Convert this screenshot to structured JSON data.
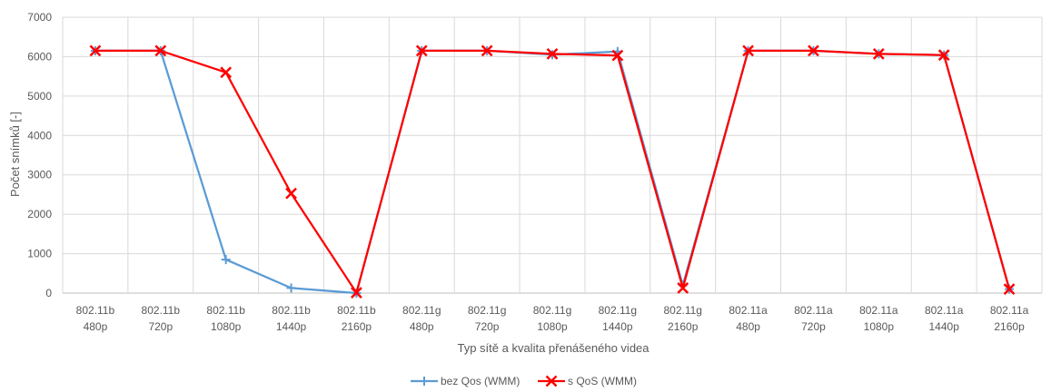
{
  "chart_data": {
    "type": "line",
    "xlabel": "Typ sítě a kvalita přenášeného videa",
    "ylabel": "Počet snímků [-]",
    "ylim": [
      0,
      7000
    ],
    "yticks": [
      0,
      1000,
      2000,
      3000,
      4000,
      5000,
      6000,
      7000
    ],
    "grid": true,
    "legend_position": "bottom",
    "categories": [
      [
        "802.11b",
        "480p"
      ],
      [
        "802.11b",
        "720p"
      ],
      [
        "802.11b",
        "1080p"
      ],
      [
        "802.11b",
        "1440p"
      ],
      [
        "802.11b",
        "2160p"
      ],
      [
        "802.11g",
        "480p"
      ],
      [
        "802.11g",
        "720p"
      ],
      [
        "802.11g",
        "1080p"
      ],
      [
        "802.11g",
        "1440p"
      ],
      [
        "802.11g",
        "2160p"
      ],
      [
        "802.11a",
        "480p"
      ],
      [
        "802.11a",
        "720p"
      ],
      [
        "802.11a",
        "1080p"
      ],
      [
        "802.11a",
        "1440p"
      ],
      [
        "802.11a",
        "2160p"
      ]
    ],
    "series": [
      {
        "name": "bez Qos (WMM)",
        "color": "#5B9BD5",
        "marker": "plus",
        "values": [
          6150,
          6150,
          850,
          130,
          0,
          6150,
          6150,
          6050,
          6130,
          200,
          6150,
          6150,
          6070,
          6040,
          100
        ]
      },
      {
        "name": "s QoS (WMM)",
        "color": "#FF0000",
        "marker": "x",
        "values": [
          6150,
          6150,
          5600,
          2530,
          10,
          6150,
          6150,
          6070,
          6030,
          130,
          6150,
          6150,
          6070,
          6040,
          100
        ]
      }
    ]
  }
}
